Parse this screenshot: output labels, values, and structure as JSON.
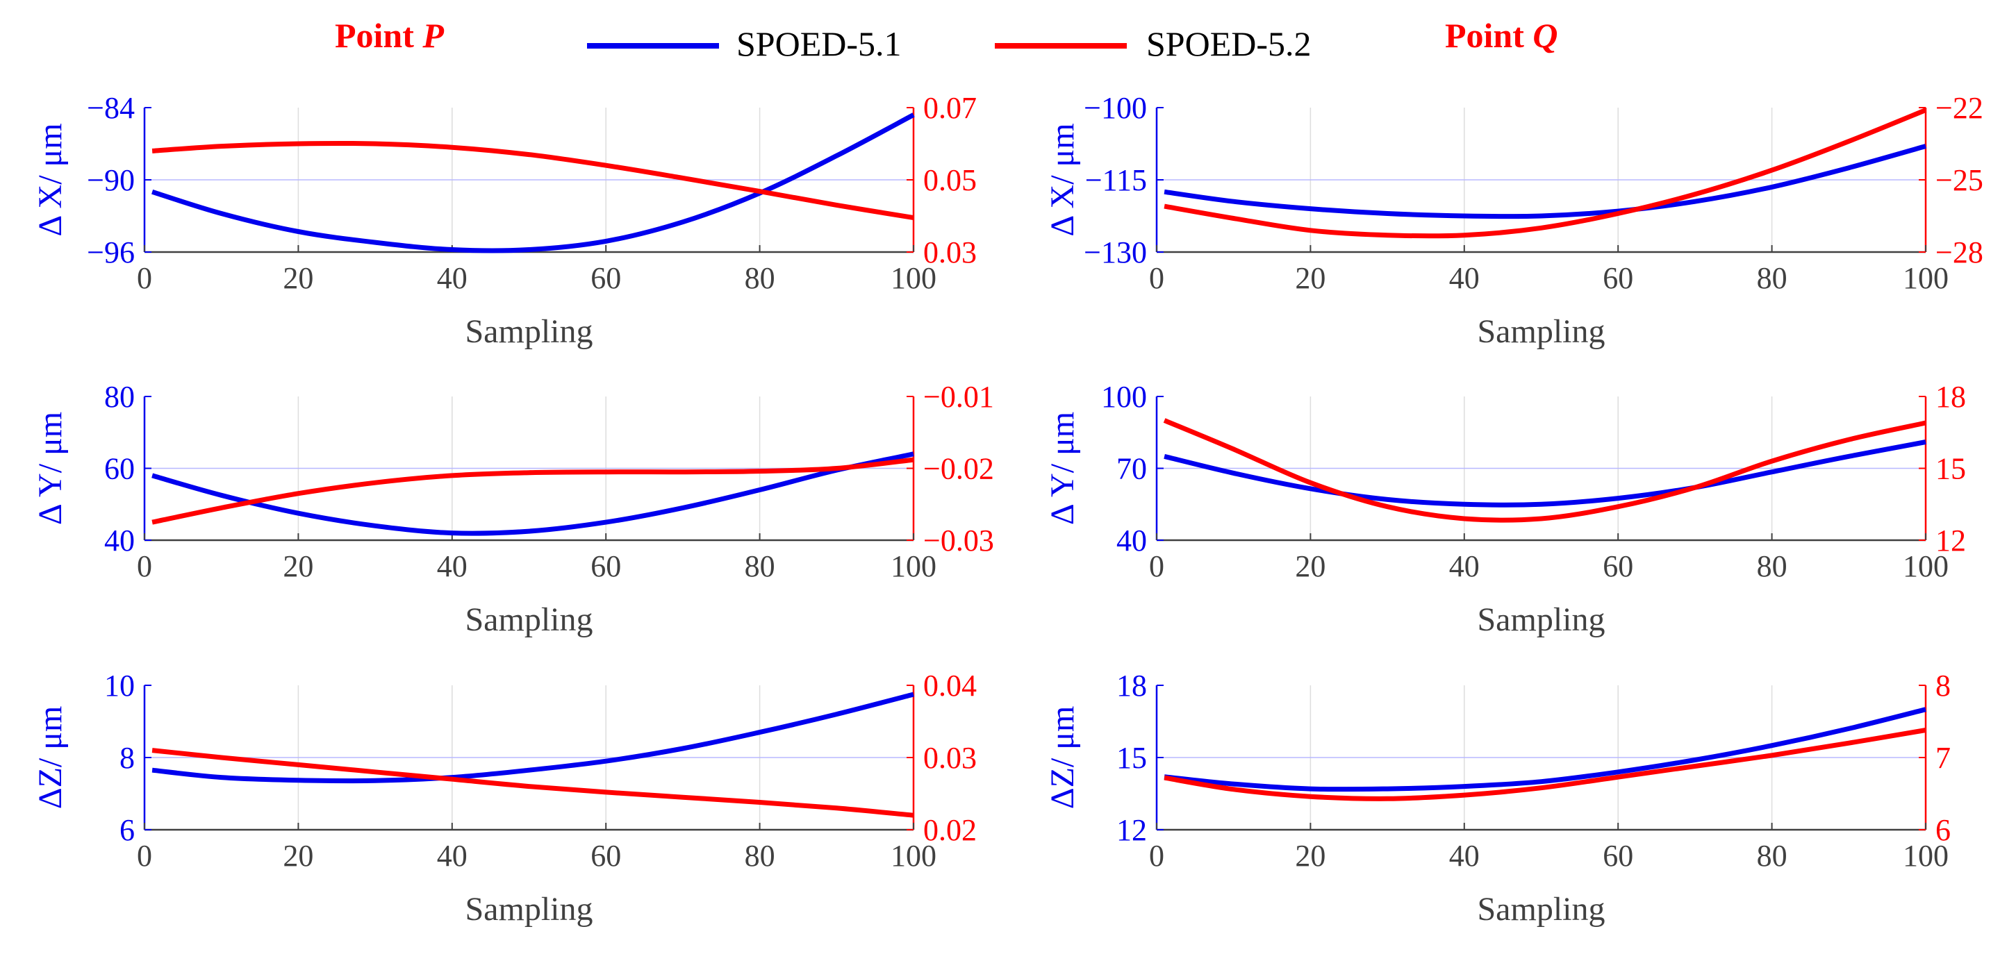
{
  "colors": {
    "s1": "#0000ee",
    "s2": "#ff0000",
    "tick": "#404040",
    "grid": "#dddddd",
    "zero": "#b8b8ff"
  },
  "titles": {
    "p_prefix": "Point ",
    "p_var": "P",
    "q_prefix": "Point ",
    "q_var": "Q"
  },
  "legend": {
    "s1": "SPOED-5.1",
    "s2": "SPOED-5.2"
  },
  "chart_data": [
    {
      "type": "line",
      "panel": "P-X",
      "xlabel": "Sampling",
      "ylabel": "Δ X/ μm",
      "xlim": [
        0,
        100
      ],
      "xticks": [
        0,
        20,
        40,
        60,
        80,
        100
      ],
      "ylim_left": [
        -96,
        -84
      ],
      "yticks_left": [
        -96,
        -90,
        -84
      ],
      "ylim_right": [
        0.03,
        0.07
      ],
      "yticks_right": [
        0.03,
        0.05,
        0.07
      ],
      "series": [
        {
          "axis": "left",
          "x": [
            1,
            10,
            20,
            30,
            40,
            50,
            60,
            70,
            80,
            90,
            100
          ],
          "values": [
            -91.0,
            -92.8,
            -94.3,
            -95.2,
            -95.8,
            -95.8,
            -95.1,
            -93.5,
            -91.1,
            -88.0,
            -84.6
          ]
        },
        {
          "axis": "right",
          "x": [
            1,
            10,
            20,
            30,
            40,
            50,
            60,
            70,
            80,
            90,
            100
          ],
          "values": [
            0.058,
            0.0593,
            0.06,
            0.06,
            0.059,
            0.057,
            0.054,
            0.0505,
            0.0468,
            0.043,
            0.0395
          ]
        }
      ]
    },
    {
      "type": "line",
      "panel": "Q-X",
      "xlabel": "Sampling",
      "ylabel": "Δ X/ μm",
      "xlim": [
        0,
        100
      ],
      "xticks": [
        0,
        20,
        40,
        60,
        80,
        100
      ],
      "ylim_left": [
        -130,
        -100
      ],
      "yticks_left": [
        -130,
        -115,
        -100
      ],
      "ylim_right": [
        -28,
        -22
      ],
      "yticks_right": [
        -28,
        -25,
        -22
      ],
      "series": [
        {
          "axis": "left",
          "x": [
            1,
            10,
            20,
            30,
            40,
            50,
            60,
            70,
            80,
            90,
            100
          ],
          "values": [
            -117.5,
            -119.5,
            -121.0,
            -122.0,
            -122.5,
            -122.5,
            -121.5,
            -119.5,
            -116.5,
            -112.5,
            -108.0
          ]
        },
        {
          "axis": "right",
          "x": [
            1,
            10,
            20,
            30,
            40,
            50,
            60,
            70,
            80,
            90,
            100
          ],
          "values": [
            -26.1,
            -26.6,
            -27.1,
            -27.3,
            -27.3,
            -27.0,
            -26.4,
            -25.6,
            -24.6,
            -23.4,
            -22.1
          ]
        }
      ]
    },
    {
      "type": "line",
      "panel": "P-Y",
      "xlabel": "Sampling",
      "ylabel": "Δ Y/ μm",
      "xlim": [
        0,
        100
      ],
      "xticks": [
        0,
        20,
        40,
        60,
        80,
        100
      ],
      "ylim_left": [
        40,
        80
      ],
      "yticks_left": [
        40,
        60,
        80
      ],
      "ylim_right": [
        -0.03,
        -0.01
      ],
      "yticks_right": [
        -0.03,
        -0.02,
        -0.01
      ],
      "series": [
        {
          "axis": "left",
          "x": [
            1,
            10,
            20,
            30,
            40,
            50,
            60,
            70,
            80,
            90,
            100
          ],
          "values": [
            58.0,
            52.5,
            47.5,
            44.0,
            42.0,
            42.5,
            45.0,
            49.0,
            54.0,
            59.5,
            64.0
          ]
        },
        {
          "axis": "right",
          "x": [
            1,
            10,
            20,
            30,
            40,
            50,
            60,
            70,
            80,
            90,
            100
          ],
          "values": [
            -0.0275,
            -0.0255,
            -0.0235,
            -0.022,
            -0.021,
            -0.0206,
            -0.0205,
            -0.0205,
            -0.0204,
            -0.02,
            -0.0188
          ]
        }
      ]
    },
    {
      "type": "line",
      "panel": "Q-Y",
      "xlabel": "Sampling",
      "ylabel": "Δ Y/ μm",
      "xlim": [
        0,
        100
      ],
      "xticks": [
        0,
        20,
        40,
        60,
        80,
        100
      ],
      "ylim_left": [
        40,
        100
      ],
      "yticks_left": [
        40,
        70,
        100
      ],
      "ylim_right": [
        12,
        18
      ],
      "yticks_right": [
        12,
        15,
        18
      ],
      "series": [
        {
          "axis": "left",
          "x": [
            1,
            10,
            20,
            30,
            40,
            50,
            60,
            70,
            80,
            90,
            100
          ],
          "values": [
            75.0,
            68.0,
            61.5,
            57.0,
            55.0,
            55.0,
            57.5,
            62.0,
            68.5,
            75.0,
            81.0
          ]
        },
        {
          "axis": "right",
          "x": [
            1,
            10,
            20,
            30,
            40,
            50,
            60,
            70,
            80,
            90,
            100
          ],
          "values": [
            17.0,
            15.8,
            14.4,
            13.4,
            12.9,
            12.9,
            13.4,
            14.2,
            15.3,
            16.2,
            16.9
          ]
        }
      ]
    },
    {
      "type": "line",
      "panel": "P-Z",
      "xlabel": "Sampling",
      "ylabel": "ΔZ/ μm",
      "xlim": [
        0,
        100
      ],
      "xticks": [
        0,
        20,
        40,
        60,
        80,
        100
      ],
      "ylim_left": [
        6,
        10
      ],
      "yticks_left": [
        6,
        8,
        10
      ],
      "ylim_right": [
        0.02,
        0.04
      ],
      "yticks_right": [
        0.02,
        0.03,
        0.04
      ],
      "series": [
        {
          "axis": "left",
          "x": [
            1,
            10,
            20,
            30,
            40,
            50,
            60,
            70,
            80,
            90,
            100
          ],
          "values": [
            7.65,
            7.45,
            7.37,
            7.36,
            7.45,
            7.65,
            7.9,
            8.25,
            8.7,
            9.2,
            9.75
          ]
        },
        {
          "axis": "right",
          "x": [
            1,
            10,
            20,
            30,
            40,
            50,
            60,
            70,
            80,
            90,
            100
          ],
          "values": [
            0.031,
            0.03,
            0.029,
            0.028,
            0.027,
            0.026,
            0.0252,
            0.0245,
            0.0238,
            0.023,
            0.022
          ]
        }
      ]
    },
    {
      "type": "line",
      "panel": "Q-Z",
      "xlabel": "Sampling",
      "ylabel": "ΔZ/ μm",
      "xlim": [
        0,
        100
      ],
      "xticks": [
        0,
        20,
        40,
        60,
        80,
        100
      ],
      "ylim_left": [
        12,
        18
      ],
      "yticks_left": [
        12,
        15,
        18
      ],
      "ylim_right": [
        6,
        8
      ],
      "yticks_right": [
        6,
        7,
        8
      ],
      "series": [
        {
          "axis": "left",
          "x": [
            1,
            10,
            20,
            30,
            40,
            50,
            60,
            70,
            80,
            90,
            100
          ],
          "values": [
            14.2,
            13.9,
            13.7,
            13.7,
            13.8,
            14.0,
            14.4,
            14.9,
            15.5,
            16.2,
            17.0
          ]
        },
        {
          "axis": "right",
          "x": [
            1,
            10,
            20,
            30,
            40,
            50,
            60,
            70,
            80,
            90,
            100
          ],
          "values": [
            6.72,
            6.56,
            6.46,
            6.43,
            6.48,
            6.58,
            6.73,
            6.88,
            7.03,
            7.2,
            7.38
          ]
        }
      ]
    }
  ]
}
